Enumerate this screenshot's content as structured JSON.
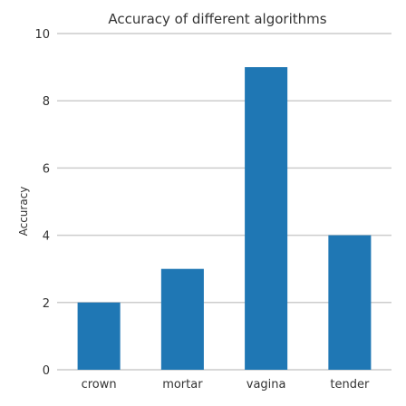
{
  "chart_data": {
    "type": "bar",
    "title": "Accuracy of different algorithms",
    "xlabel": "",
    "ylabel": "Accuracy",
    "categories": [
      "crown",
      "mortar",
      "vagina",
      "tender"
    ],
    "values": [
      2,
      3,
      9,
      4
    ],
    "ylim": [
      0,
      10
    ],
    "yticks": [
      0,
      2,
      4,
      6,
      8,
      10
    ],
    "grid": true,
    "bar_color": "#1f77b4"
  }
}
